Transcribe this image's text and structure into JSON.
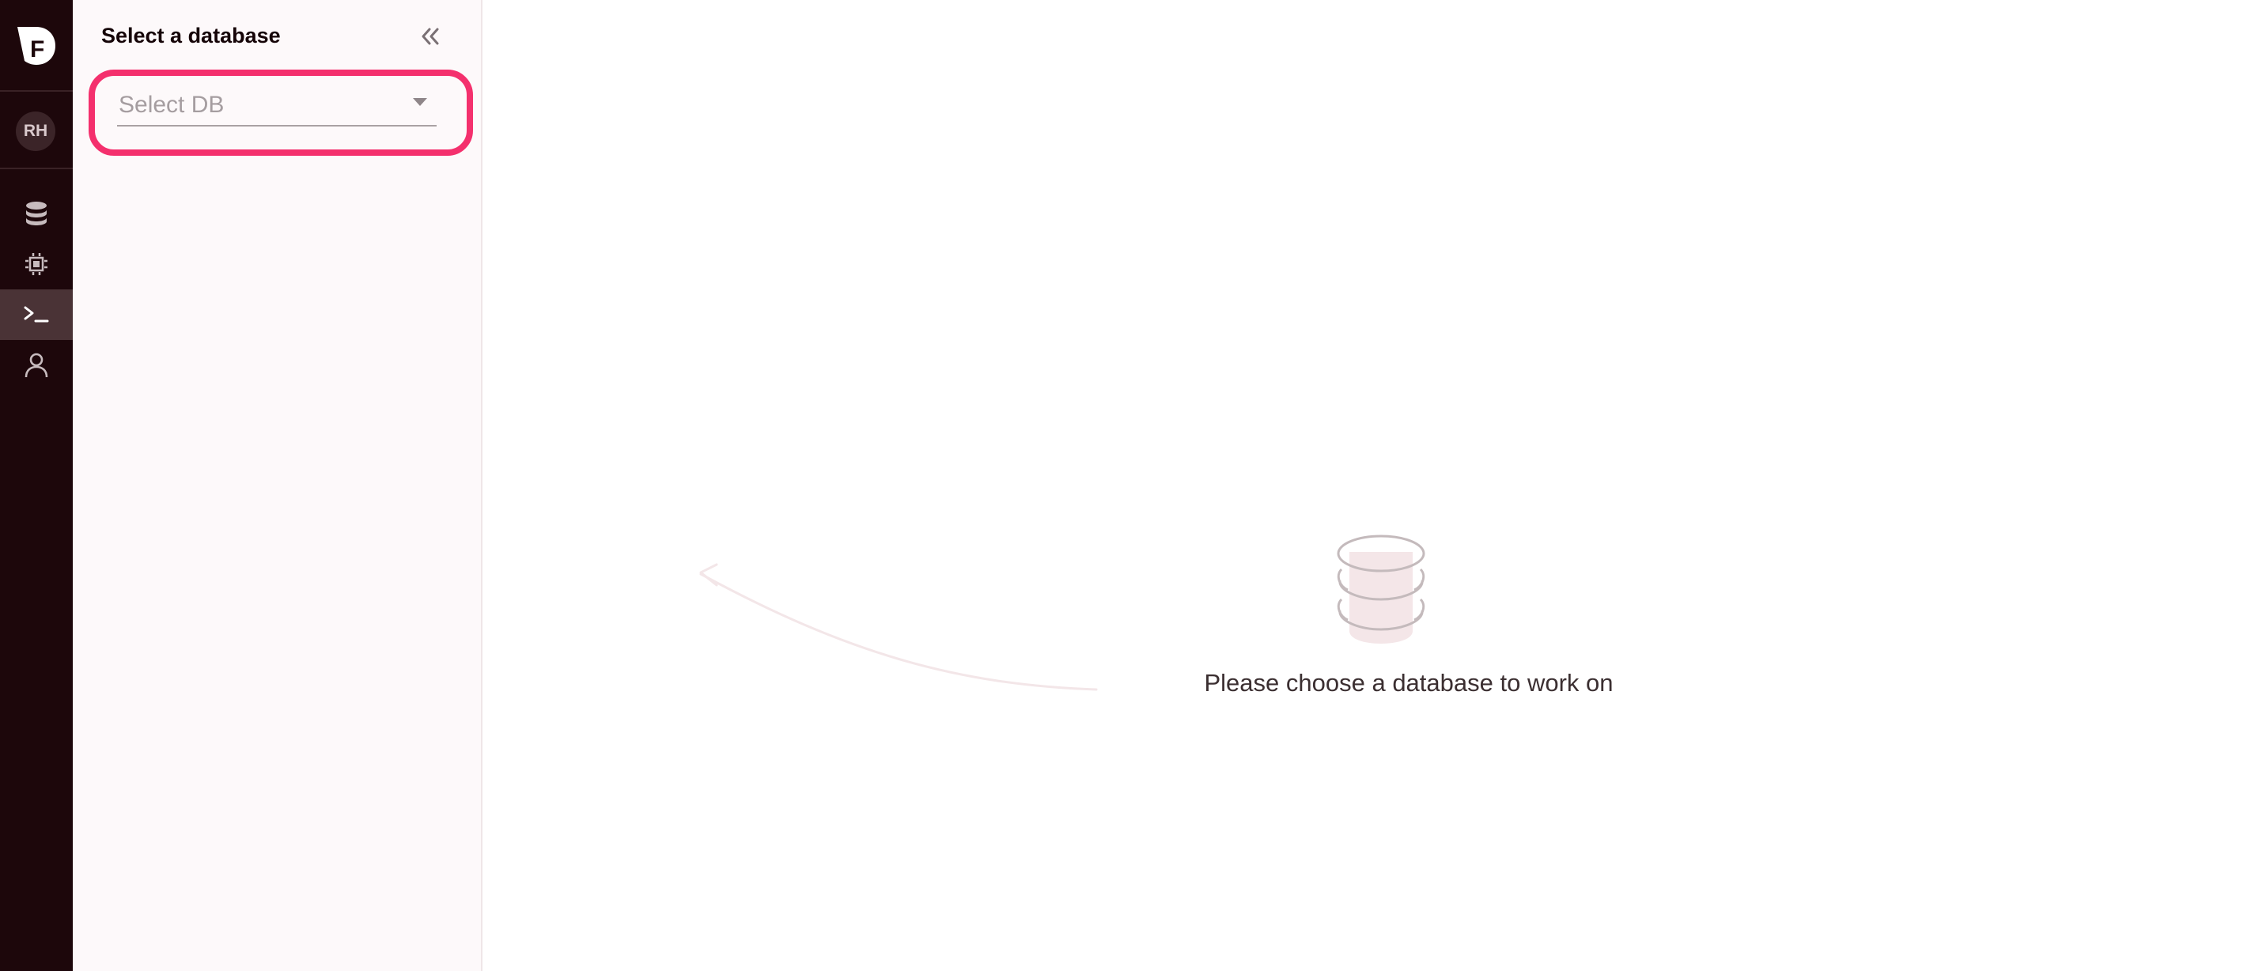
{
  "rail": {
    "logo_icon": "brand-logo-icon",
    "avatar_initials": "RH",
    "nav_items": [
      {
        "icon": "database-icon",
        "active": false
      },
      {
        "icon": "chip-icon",
        "active": false
      },
      {
        "icon": "terminal-icon",
        "active": true
      },
      {
        "icon": "user-icon",
        "active": false
      }
    ]
  },
  "sidebar": {
    "title": "Select a database",
    "collapse_icon": "double-chevron-left-icon",
    "select": {
      "placeholder": "Select DB",
      "caret_icon": "caret-down-icon"
    },
    "highlight_color": "#f4306d"
  },
  "main": {
    "illustration_icon": "database-stack-icon",
    "empty_message": "Please choose a database to work on"
  },
  "colors": {
    "rail_bg": "#1d070b",
    "rail_active_bg": "#4a3336",
    "sidebar_bg": "#fdf9fa",
    "accent": "#f4306d"
  }
}
